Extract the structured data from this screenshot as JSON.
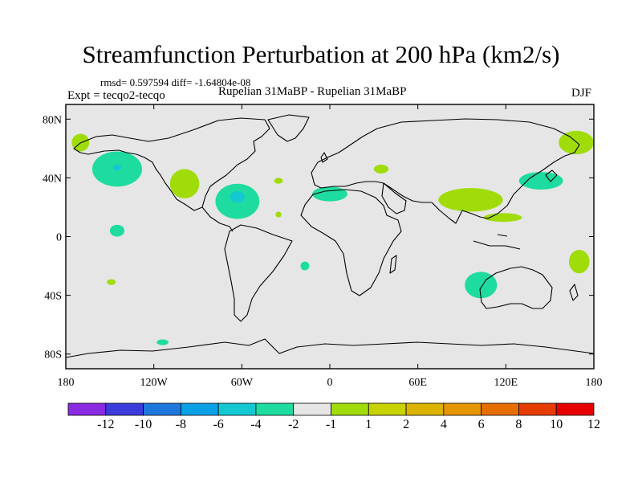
{
  "chart_data": {
    "type": "contour",
    "title": "Streamfunction Perturbation at 200 hPa (km2/s)",
    "stats": "rmsd= 0.597594 diff= -1.64804e-08",
    "experiment": "Expt = tecqo2-tecqo",
    "cases": "Rupelian  31MaBP - Rupelian  31MaBP",
    "season": "DJF",
    "map": {
      "projection": "cylindrical-equidistant",
      "lon_range": [
        -180,
        180
      ],
      "lat_range": [
        -90,
        90
      ],
      "x_ticks": [
        {
          "lon": -180,
          "label": "180"
        },
        {
          "lon": -120,
          "label": "120W"
        },
        {
          "lon": -60,
          "label": "60W"
        },
        {
          "lon": 0,
          "label": "0"
        },
        {
          "lon": 60,
          "label": "60E"
        },
        {
          "lon": 120,
          "label": "120E"
        },
        {
          "lon": 180,
          "label": "180"
        }
      ],
      "y_ticks": [
        {
          "lat": 80,
          "label": "80N"
        },
        {
          "lat": 40,
          "label": "40N"
        },
        {
          "lat": 0,
          "label": "0"
        },
        {
          "lat": -40,
          "label": "40S"
        },
        {
          "lat": -80,
          "label": "80S"
        }
      ],
      "background_color": "#e6e6e6"
    },
    "colorbar": {
      "colors": [
        "#8a2be2",
        "#3c3cdc",
        "#1e78dc",
        "#0aa0e6",
        "#14c8d2",
        "#1edca0",
        "#e6e6e6",
        "#a0dc0a",
        "#c8d200",
        "#dcb400",
        "#e69600",
        "#e66e00",
        "#e63c00",
        "#e60000"
      ],
      "labels": [
        "-12",
        "-10",
        "-8",
        "-6",
        "-4",
        "-2",
        "-1",
        "1",
        "2",
        "4",
        "6",
        "8",
        "10",
        "12"
      ]
    },
    "anomalies": [
      {
        "lon": -145,
        "lat": 46,
        "rlon": 17,
        "rlat": 12,
        "level": "-2"
      },
      {
        "lon": -145,
        "lat": 47,
        "rlon": 3,
        "rlat": 2,
        "level": "-4"
      },
      {
        "lon": -99,
        "lat": 36,
        "rlon": 10,
        "rlat": 10,
        "level": "1"
      },
      {
        "lon": -63,
        "lat": 24,
        "rlon": 15,
        "rlat": 12,
        "level": "-2"
      },
      {
        "lon": -63,
        "lat": 27,
        "rlon": 5,
        "rlat": 4,
        "level": "-4"
      },
      {
        "lon": -145,
        "lat": 4,
        "rlon": 5,
        "rlat": 4,
        "level": "-2"
      },
      {
        "lon": -149,
        "lat": -31,
        "rlon": 3,
        "rlat": 2,
        "level": "1"
      },
      {
        "lon": -114,
        "lat": -72,
        "rlon": 4,
        "rlat": 2,
        "level": "-2"
      },
      {
        "lon": -35,
        "lat": 38,
        "rlon": 3,
        "rlat": 2,
        "level": "1"
      },
      {
        "lon": -35,
        "lat": 15,
        "rlon": 2,
        "rlat": 2,
        "level": "1"
      },
      {
        "lon": 0,
        "lat": 29,
        "rlon": 12,
        "rlat": 5,
        "level": "-2"
      },
      {
        "lon": -17,
        "lat": -20,
        "rlon": 3,
        "rlat": 3,
        "level": "-2"
      },
      {
        "lon": 35,
        "lat": 46,
        "rlon": 5,
        "rlat": 3,
        "level": "1"
      },
      {
        "lon": 96,
        "lat": 25,
        "rlon": 22,
        "rlat": 8,
        "level": "1"
      },
      {
        "lon": 118,
        "lat": 13,
        "rlon": 13,
        "rlat": 3,
        "level": "1"
      },
      {
        "lon": 144,
        "lat": 38,
        "rlon": 15,
        "rlat": 6,
        "level": "-2"
      },
      {
        "lon": 168,
        "lat": 64,
        "rlon": 12,
        "rlat": 8,
        "level": "1"
      },
      {
        "lon": -170,
        "lat": 64,
        "rlon": 6,
        "rlat": 6,
        "level": "1"
      },
      {
        "lon": 170,
        "lat": -17,
        "rlon": 7,
        "rlat": 8,
        "level": "1"
      },
      {
        "lon": 103,
        "lat": -33,
        "rlon": 11,
        "rlat": 9,
        "level": "-2"
      }
    ]
  }
}
